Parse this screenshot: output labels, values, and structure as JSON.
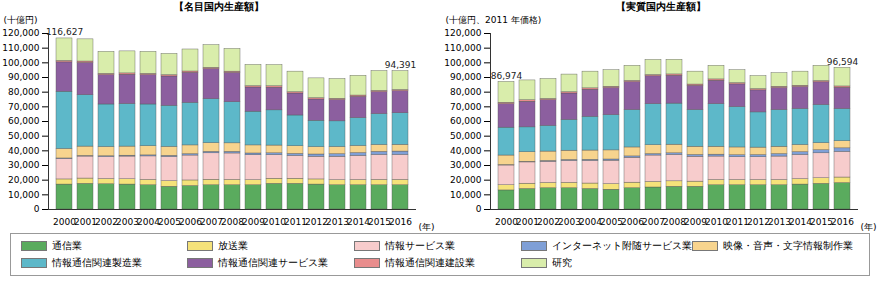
{
  "chart_data": [
    {
      "type": "bar",
      "stacked": true,
      "title": "【名目国内生産額】",
      "y_label": "(十億円)",
      "x_label": "(年)",
      "legend": "bottom",
      "grid": false,
      "categories": [
        "2000",
        "2001",
        "2002",
        "2003",
        "2004",
        "2005",
        "2006",
        "2007",
        "2008",
        "2009",
        "2010",
        "2011",
        "2012",
        "2013",
        "2014",
        "2015",
        "2016"
      ],
      "series": [
        {
          "name": "通信業",
          "color": "#5aab5e",
          "values": [
            17000,
            17500,
            17200,
            17000,
            16500,
            15500,
            16000,
            16500,
            16500,
            16500,
            17500,
            17500,
            17000,
            16500,
            16500,
            16500,
            16500
          ]
        },
        {
          "name": "放送業",
          "color": "#f5e27a",
          "values": [
            3500,
            3600,
            3600,
            3600,
            3700,
            3800,
            3800,
            3800,
            3700,
            3500,
            3500,
            3500,
            3500,
            3500,
            3600,
            3700,
            3700
          ]
        },
        {
          "name": "情報サービス業",
          "color": "#f7cccc",
          "values": [
            14000,
            15000,
            15000,
            15500,
            16000,
            16500,
            17000,
            18000,
            18000,
            17000,
            16000,
            15500,
            15500,
            16000,
            16500,
            17000,
            17000
          ]
        },
        {
          "name": "インターネット附随サービス業",
          "color": "#7f9fd6",
          "values": [
            300,
            400,
            500,
            600,
            700,
            800,
            900,
            1000,
            1100,
            1200,
            1300,
            1400,
            1500,
            1700,
            1900,
            2100,
            2300
          ]
        },
        {
          "name": "映像・音声・文字情報制作業",
          "color": "#f7d48e",
          "values": [
            6500,
            6400,
            6300,
            6200,
            6200,
            6100,
            6000,
            5900,
            5800,
            5500,
            5300,
            5200,
            5000,
            4900,
            4800,
            4700,
            4600
          ]
        },
        {
          "name": "情報通信関連製造業",
          "color": "#5db8c9",
          "values": [
            39000,
            35000,
            29000,
            29000,
            28500,
            28000,
            29000,
            30000,
            28000,
            23000,
            24000,
            21000,
            18000,
            17500,
            19000,
            21000,
            21500
          ]
        },
        {
          "name": "情報通信関連サービス業",
          "color": "#8c5f9f",
          "values": [
            20000,
            22000,
            20000,
            20000,
            20000,
            20000,
            20500,
            20500,
            20000,
            16500,
            15500,
            15000,
            14500,
            14500,
            14500,
            15000,
            15000
          ]
        },
        {
          "name": "情報通信関連建設業",
          "color": "#e98d8d",
          "values": [
            1000,
            1000,
            900,
            900,
            900,
            900,
            900,
            900,
            900,
            900,
            900,
            900,
            900,
            900,
            900,
            900,
            900
          ]
        },
        {
          "name": "研究",
          "color": "#d9edab",
          "values": [
            15327,
            15100,
            15000,
            15000,
            15000,
            14500,
            15000,
            15500,
            15500,
            14500,
            14500,
            14000,
            13500,
            13500,
            13500,
            13500,
            12891
          ]
        }
      ],
      "ylim": [
        0,
        120000
      ],
      "yticks": [
        0,
        {
          "value": 10000,
          "label": "10,000"
        },
        {
          "value": 20000,
          "label": "20,000"
        },
        {
          "value": 30000,
          "label": "30,000"
        },
        {
          "value": 40000,
          "label": "40,000"
        },
        {
          "value": 50000,
          "label": "50,000"
        },
        {
          "value": 60000,
          "label": "60,000"
        },
        {
          "value": 70000,
          "label": "70,000"
        },
        {
          "value": 80000,
          "label": "80,000"
        },
        {
          "value": 90000,
          "label": "90,000"
        },
        {
          "value": 100000,
          "label": "100,000"
        },
        {
          "value": 110000,
          "label": "110,000"
        },
        {
          "value": 120000,
          "label": "120,000"
        }
      ],
      "annotations": [
        {
          "x": "2000",
          "y": 116627,
          "text": "116,627"
        },
        {
          "x": "2016",
          "y": 94391,
          "text": "94,391"
        }
      ]
    },
    {
      "type": "bar",
      "stacked": true,
      "title": "【実質国内生産額】",
      "y_label": "(十億円、2011 年価格)",
      "x_label": "(年)",
      "legend": "bottom",
      "grid": false,
      "categories": [
        "2000",
        "2001",
        "2002",
        "2003",
        "2004",
        "2005",
        "2006",
        "2007",
        "2008",
        "2009",
        "2010",
        "2011",
        "2012",
        "2013",
        "2014",
        "2015",
        "2016"
      ],
      "series": [
        {
          "name": "通信業",
          "color": "#5aab5e",
          "values": [
            13000,
            14000,
            14500,
            14500,
            14000,
            13500,
            14500,
            15000,
            15500,
            15500,
            16500,
            16500,
            16500,
            16500,
            17000,
            17500,
            18000
          ]
        },
        {
          "name": "放送業",
          "color": "#f5e27a",
          "values": [
            3500,
            3600,
            3600,
            3700,
            3700,
            3800,
            3800,
            3800,
            3700,
            3500,
            3600,
            3600,
            3600,
            3600,
            3700,
            3800,
            3800
          ]
        },
        {
          "name": "情報サービス業",
          "color": "#f7cccc",
          "values": [
            13500,
            14500,
            14500,
            15000,
            15500,
            16000,
            17000,
            18000,
            18000,
            17000,
            16000,
            15500,
            15500,
            16000,
            16500,
            17000,
            17500
          ]
        },
        {
          "name": "インターネット附随サービス業",
          "color": "#7f9fd6",
          "values": [
            300,
            400,
            500,
            600,
            700,
            800,
            900,
            1000,
            1100,
            1200,
            1300,
            1400,
            1500,
            1700,
            1900,
            2100,
            2400
          ]
        },
        {
          "name": "映像・音声・文字情報制作業",
          "color": "#f7d48e",
          "values": [
            6500,
            6500,
            6400,
            6300,
            6300,
            6200,
            6100,
            6000,
            5900,
            5600,
            5400,
            5300,
            5100,
            5000,
            4900,
            4800,
            4800
          ]
        },
        {
          "name": "情報通信関連製造業",
          "color": "#5db8c9",
          "values": [
            19000,
            17000,
            17500,
            21000,
            23000,
            24000,
            25500,
            28000,
            28000,
            25000,
            29000,
            27500,
            24000,
            25000,
            24500,
            26000,
            22000
          ]
        },
        {
          "name": "情報通信関連サービス業",
          "color": "#8c5f9f",
          "values": [
            16000,
            17500,
            17500,
            18000,
            18500,
            18500,
            19000,
            19000,
            19000,
            16500,
            16000,
            15500,
            15000,
            15000,
            15000,
            15500,
            14500
          ]
        },
        {
          "name": "情報通信関連建設業",
          "color": "#e98d8d",
          "values": [
            1000,
            1000,
            900,
            900,
            900,
            900,
            900,
            900,
            900,
            900,
            900,
            900,
            900,
            900,
            900,
            900,
            900
          ]
        },
        {
          "name": "研究",
          "color": "#d9edab",
          "values": [
            14174,
            13500,
            13600,
            12000,
            11400,
            11300,
            10300,
            10300,
            10000,
            8800,
            9300,
            8800,
            8900,
            9300,
            9600,
            10400,
            12694
          ]
        }
      ],
      "ylim": [
        0,
        120000
      ],
      "yticks": [
        0,
        {
          "value": 10000,
          "label": "10,000"
        },
        {
          "value": 20000,
          "label": "20,000"
        },
        {
          "value": 30000,
          "label": "30,000"
        },
        {
          "value": 40000,
          "label": "40,000"
        },
        {
          "value": 50000,
          "label": "50,000"
        },
        {
          "value": 60000,
          "label": "60,000"
        },
        {
          "value": 70000,
          "label": "70,000"
        },
        {
          "value": 80000,
          "label": "80,000"
        },
        {
          "value": 90000,
          "label": "90,000"
        },
        {
          "value": 100000,
          "label": "100,000"
        },
        {
          "value": 110000,
          "label": "110,000"
        },
        {
          "value": 120000,
          "label": "120,000"
        }
      ],
      "annotations": [
        {
          "x": "2000",
          "y": 86974,
          "text": "86,974"
        },
        {
          "x": "2016",
          "y": 96594,
          "text": "96,594"
        }
      ]
    }
  ]
}
